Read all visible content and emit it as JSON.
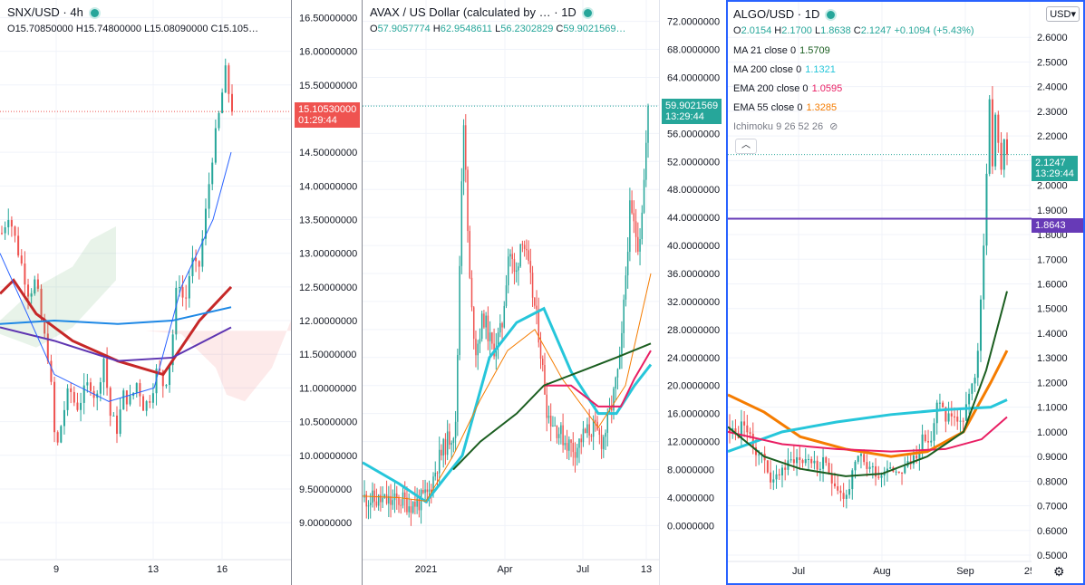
{
  "panels": [
    {
      "symbol": "SNX/USD · 4h",
      "ohlc": [
        [
          "O",
          "15.70850000"
        ],
        [
          "H",
          "15.74800000"
        ],
        [
          "L",
          "15.08090000"
        ],
        [
          "C",
          "15.105…"
        ]
      ],
      "price_tag": "15.10530000",
      "time_tag": "01:29:44",
      "colors": {
        "up": "#26a69a",
        "down": "#ef5350",
        "tag": "#ef5350"
      },
      "chart_data": {
        "type": "candlestick",
        "title": "SNX/USD · 4h",
        "y_ticks": [
          "16.50000000",
          "16.00000000",
          "15.50000000",
          "15.00000000",
          "14.50000000",
          "14.00000000",
          "13.50000000",
          "13.00000000",
          "12.50000000",
          "12.00000000",
          "11.50000000",
          "11.00000000",
          "10.50000000",
          "10.00000000",
          "9.50000000",
          "9.00000000"
        ],
        "x_ticks": [
          "9",
          "13",
          "16"
        ],
        "ylim": [
          8.8,
          16.6
        ],
        "last_close": 15.1053,
        "close_path": [
          [
            0,
            13.3
          ],
          [
            3,
            13.6
          ],
          [
            6,
            13.2
          ],
          [
            9,
            12.8
          ],
          [
            12,
            12.4
          ],
          [
            15,
            12.6
          ],
          [
            18,
            11.9
          ],
          [
            21,
            11.4
          ],
          [
            24,
            10.0
          ],
          [
            27,
            10.6
          ],
          [
            30,
            11.0
          ],
          [
            33,
            10.7
          ],
          [
            36,
            10.9
          ],
          [
            39,
            11.1
          ],
          [
            42,
            10.8
          ],
          [
            45,
            11.5
          ],
          [
            48,
            10.6
          ],
          [
            51,
            10.4
          ],
          [
            54,
            10.9
          ],
          [
            57,
            10.8
          ],
          [
            60,
            11.1
          ],
          [
            63,
            10.7
          ],
          [
            66,
            10.9
          ],
          [
            69,
            11.3
          ],
          [
            72,
            11.0
          ],
          [
            75,
            11.5
          ],
          [
            78,
            12.7
          ],
          [
            81,
            12.2
          ],
          [
            84,
            12.9
          ],
          [
            87,
            12.7
          ],
          [
            90,
            13.5
          ],
          [
            93,
            14.4
          ],
          [
            96,
            15.0
          ],
          [
            99,
            15.7
          ],
          [
            102,
            15.1
          ]
        ]
      }
    },
    {
      "symbol": "AVAX / US Dollar (calculated by … · 1D",
      "ohlc": [
        [
          "O",
          "57.9057774"
        ],
        [
          "H",
          "62.9548611"
        ],
        [
          "L",
          "56.2302829"
        ],
        [
          "C",
          "59.9021569…"
        ]
      ],
      "price_tag": "59.9021569",
      "time_tag": "13:29:44",
      "colors": {
        "up": "#26a69a",
        "down": "#ef5350",
        "tag": "#26a69a"
      },
      "chart_data": {
        "type": "candlestick",
        "title": "AVAX / US Dollar (calculated by … · 1D",
        "y_ticks": [
          "72.0000000",
          "68.0000000",
          "64.0000000",
          "60.0000000",
          "56.0000000",
          "52.0000000",
          "48.0000000",
          "44.0000000",
          "40.0000000",
          "36.0000000",
          "32.0000000",
          "28.0000000",
          "24.0000000",
          "20.0000000",
          "16.0000000",
          "12.0000000",
          "8.0000000",
          "4.0000000",
          "0.0000000"
        ],
        "x_ticks": [
          "2021",
          "Apr",
          "Jul",
          "13"
        ],
        "ylim": [
          -1.5,
          73.5
        ],
        "last_close": 59.9021569,
        "close_path": [
          [
            0,
            4.0
          ],
          [
            10,
            3.6
          ],
          [
            20,
            3.5
          ],
          [
            30,
            3.3
          ],
          [
            40,
            3.7
          ],
          [
            50,
            3.1
          ],
          [
            60,
            3.4
          ],
          [
            70,
            4.5
          ],
          [
            80,
            9.0
          ],
          [
            90,
            12.0
          ],
          [
            100,
            14.0
          ],
          [
            108,
            60.0
          ],
          [
            112,
            45.0
          ],
          [
            116,
            32.0
          ],
          [
            122,
            25.0
          ],
          [
            130,
            30.0
          ],
          [
            140,
            25.0
          ],
          [
            150,
            28.0
          ],
          [
            158,
            40.0
          ],
          [
            165,
            35.0
          ],
          [
            172,
            42.0
          ],
          [
            180,
            36.0
          ],
          [
            190,
            28.0
          ],
          [
            200,
            16.0
          ],
          [
            210,
            14.0
          ],
          [
            220,
            12.0
          ],
          [
            230,
            11.0
          ],
          [
            240,
            13.0
          ],
          [
            250,
            14.0
          ],
          [
            260,
            12.0
          ],
          [
            270,
            17.0
          ],
          [
            280,
            24.0
          ],
          [
            290,
            45.0
          ],
          [
            300,
            40.0
          ],
          [
            306,
            50.0
          ],
          [
            310,
            59.9
          ]
        ]
      }
    },
    {
      "symbol": "ALGO/USD · 1D",
      "ohlc": [
        [
          "O",
          "2.0154"
        ],
        [
          "H",
          "2.1700"
        ],
        [
          "L",
          "1.8638"
        ],
        [
          "C",
          "2.1247"
        ]
      ],
      "change": "+0.1094 (+5.43%)",
      "currency": "USD",
      "price_tag": "2.1247",
      "time_tag": "13:29:44",
      "level_tag": "1.8643",
      "indicators": [
        {
          "label": "MA 21 close 0",
          "value": "1.5709",
          "color": "#1b5e20"
        },
        {
          "label": "MA 200 close 0",
          "value": "1.1321",
          "color": "#26c6da"
        },
        {
          "label": "EMA 200 close 0",
          "value": "1.0595",
          "color": "#e91e63"
        },
        {
          "label": "EMA 55 close 0",
          "value": "1.3285",
          "color": "#f57c00"
        },
        {
          "label": "Ichimoku 9 26 52 26",
          "value": "",
          "color": "#787b86"
        }
      ],
      "colors": {
        "up": "#26a69a",
        "down": "#ef5350",
        "tag": "#26a69a",
        "level": "#673ab7"
      },
      "chart_data": {
        "type": "candlestick",
        "title": "ALGO/USD · 1D",
        "y_ticks": [
          "2.6000",
          "2.5000",
          "2.4000",
          "2.3000",
          "2.2000",
          "2.1000",
          "2.0000",
          "1.9000",
          "1.8000",
          "1.7000",
          "1.6000",
          "1.5000",
          "1.4000",
          "1.3000",
          "1.2000",
          "1.1000",
          "1.0000",
          "0.9000",
          "0.8000",
          "0.7000",
          "0.6000",
          "0.5000"
        ],
        "x_ticks": [
          "Jul",
          "Aug",
          "Sep",
          "25"
        ],
        "ylim": [
          0.5,
          2.7
        ],
        "last_close": 2.1247,
        "close_path": [
          [
            0,
            1.02
          ],
          [
            8,
            0.98
          ],
          [
            16,
            1.05
          ],
          [
            24,
            0.95
          ],
          [
            32,
            0.92
          ],
          [
            40,
            0.88
          ],
          [
            48,
            0.78
          ],
          [
            56,
            0.85
          ],
          [
            64,
            0.86
          ],
          [
            72,
            0.9
          ],
          [
            80,
            0.88
          ],
          [
            88,
            0.9
          ],
          [
            96,
            0.85
          ],
          [
            104,
            0.87
          ],
          [
            112,
            0.82
          ],
          [
            120,
            0.78
          ],
          [
            128,
            0.72
          ],
          [
            136,
            0.82
          ],
          [
            144,
            0.9
          ],
          [
            152,
            0.86
          ],
          [
            160,
            0.85
          ],
          [
            168,
            0.82
          ],
          [
            176,
            0.88
          ],
          [
            184,
            0.84
          ],
          [
            192,
            0.85
          ],
          [
            200,
            0.87
          ],
          [
            208,
            0.92
          ],
          [
            216,
            0.98
          ],
          [
            224,
            0.95
          ],
          [
            232,
            1.15
          ],
          [
            240,
            1.05
          ],
          [
            248,
            1.08
          ],
          [
            256,
            1.02
          ],
          [
            264,
            1.12
          ],
          [
            272,
            1.2
          ],
          [
            278,
            1.45
          ],
          [
            284,
            1.9
          ],
          [
            288,
            2.4
          ],
          [
            292,
            2.05
          ],
          [
            296,
            2.38
          ],
          [
            300,
            2.0
          ],
          [
            304,
            2.2
          ],
          [
            308,
            2.12
          ]
        ]
      }
    }
  ]
}
